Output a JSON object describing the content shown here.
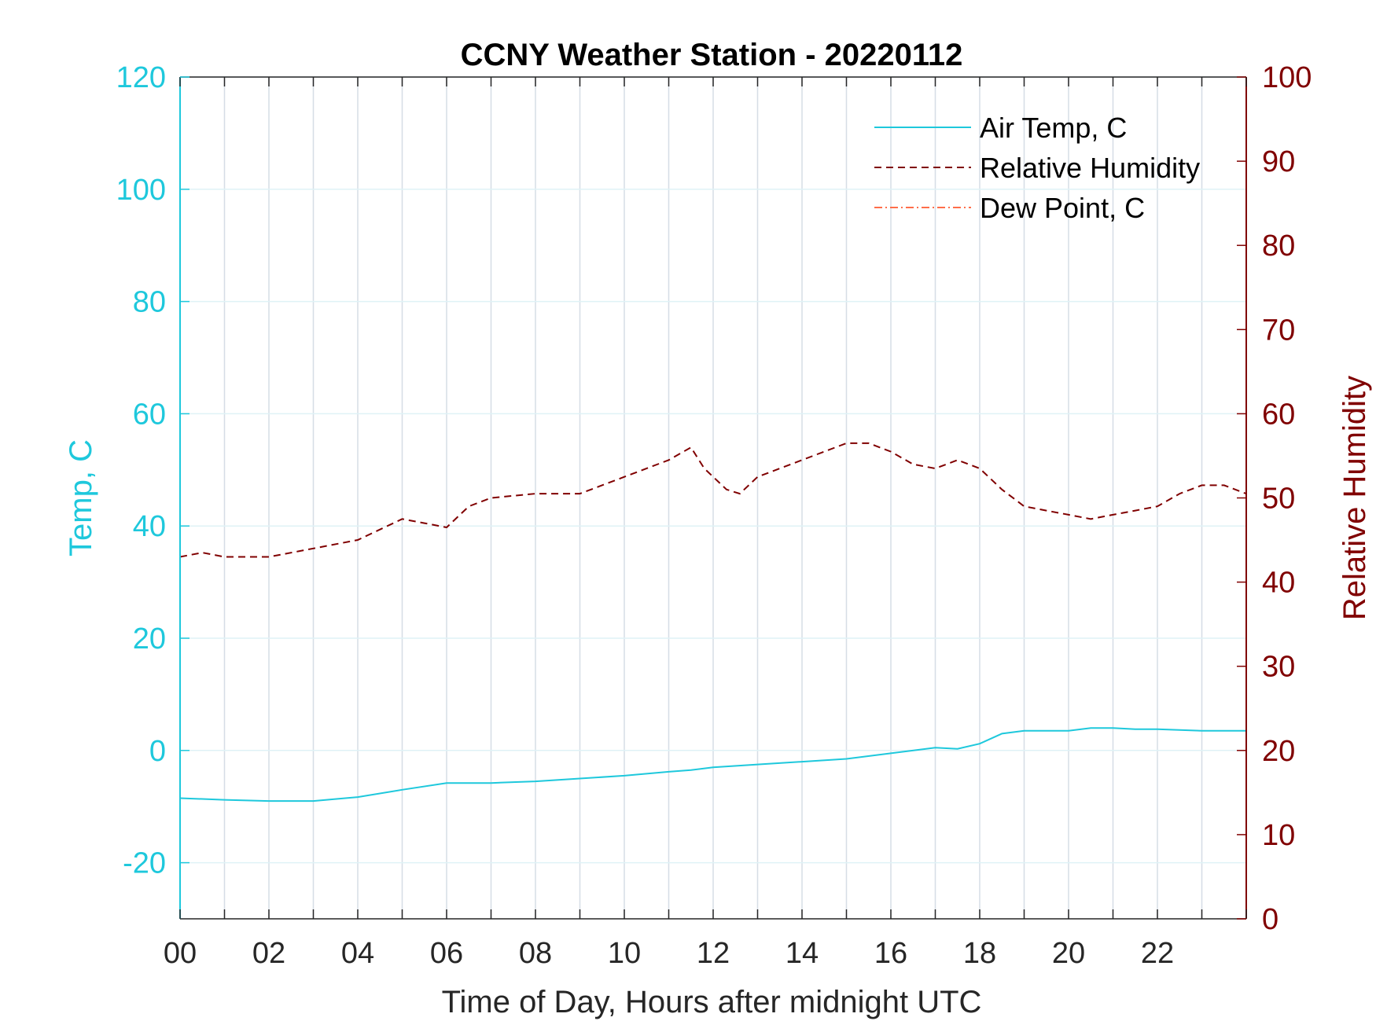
{
  "chart_data": {
    "type": "line",
    "title": "CCNY Weather Station - 20220112",
    "xlabel": "Time of Day, Hours after midnight UTC",
    "ylabel_left": "Temp, C",
    "ylabel_right": "Relative Humidity",
    "xlim": [
      0,
      24
    ],
    "ylim_left": [
      -30,
      120
    ],
    "ylim_right": [
      0,
      100
    ],
    "x_ticks": [
      0,
      2,
      4,
      6,
      8,
      10,
      12,
      14,
      16,
      18,
      20,
      22
    ],
    "x_tick_labels": [
      "00",
      "02",
      "04",
      "06",
      "08",
      "10",
      "12",
      "14",
      "16",
      "18",
      "20",
      "22"
    ],
    "y_left_ticks": [
      -20,
      0,
      20,
      40,
      60,
      80,
      100,
      120
    ],
    "y_left_tick_labels": [
      "-20",
      "0",
      "20",
      "40",
      "60",
      "80",
      "100",
      "120"
    ],
    "y_right_ticks": [
      0,
      10,
      20,
      30,
      40,
      50,
      60,
      70,
      80,
      90,
      100
    ],
    "y_right_tick_labels": [
      "0",
      "10",
      "20",
      "30",
      "40",
      "50",
      "60",
      "70",
      "80",
      "90",
      "100"
    ],
    "grid": true,
    "legend_position": "top-right",
    "colors": {
      "left_axis": "#1ec8dc",
      "right_axis": "#800000",
      "dew_point": "#ff6e4a",
      "grid": "#d6dde6"
    },
    "series": [
      {
        "name": "Air Temp, C",
        "axis": "left",
        "style": "solid",
        "x": [
          0,
          1,
          2,
          3,
          4,
          5,
          6,
          7,
          8,
          9,
          10,
          11,
          11.5,
          12,
          13,
          14,
          15,
          16,
          17,
          17.5,
          18,
          18.5,
          19,
          19.5,
          20,
          20.5,
          21,
          21.5,
          22,
          23,
          24
        ],
        "values": [
          -8.5,
          -8.8,
          -9,
          -9,
          -8.3,
          -7,
          -5.8,
          -5.8,
          -5.5,
          -5,
          -4.5,
          -3.8,
          -3.5,
          -3,
          -2.5,
          -2,
          -1.5,
          -0.5,
          0.5,
          0.3,
          1.2,
          3,
          3.5,
          3.5,
          3.5,
          4,
          4,
          3.8,
          3.8,
          3.5,
          3.5
        ]
      },
      {
        "name": "Relative Humidity",
        "axis": "right",
        "style": "dashed",
        "x": [
          0,
          0.5,
          1,
          2,
          3,
          4,
          5,
          5.5,
          6,
          6.5,
          7,
          8,
          9,
          10,
          11,
          11.5,
          11.8,
          12.3,
          12.6,
          13,
          13.5,
          14,
          15,
          15.5,
          16,
          16.5,
          17,
          17.5,
          18,
          18.5,
          19,
          19.5,
          20,
          20.5,
          21,
          21.5,
          22,
          22.5,
          23,
          23.5,
          24
        ],
        "values": [
          43,
          43.5,
          43,
          43,
          44,
          45,
          47.5,
          47,
          46.5,
          49,
          50,
          50.5,
          50.5,
          52.5,
          54.5,
          56,
          53.5,
          51,
          50.5,
          52.5,
          53.5,
          54.5,
          56.5,
          56.5,
          55.5,
          54,
          53.5,
          54.5,
          53.5,
          51,
          49,
          48.5,
          48,
          47.5,
          48,
          48.5,
          49,
          50.5,
          51.5,
          51.5,
          50.5
        ]
      },
      {
        "name": "Dew Point, C",
        "axis": "left",
        "style": "dashdot",
        "x": [],
        "values": []
      }
    ]
  }
}
